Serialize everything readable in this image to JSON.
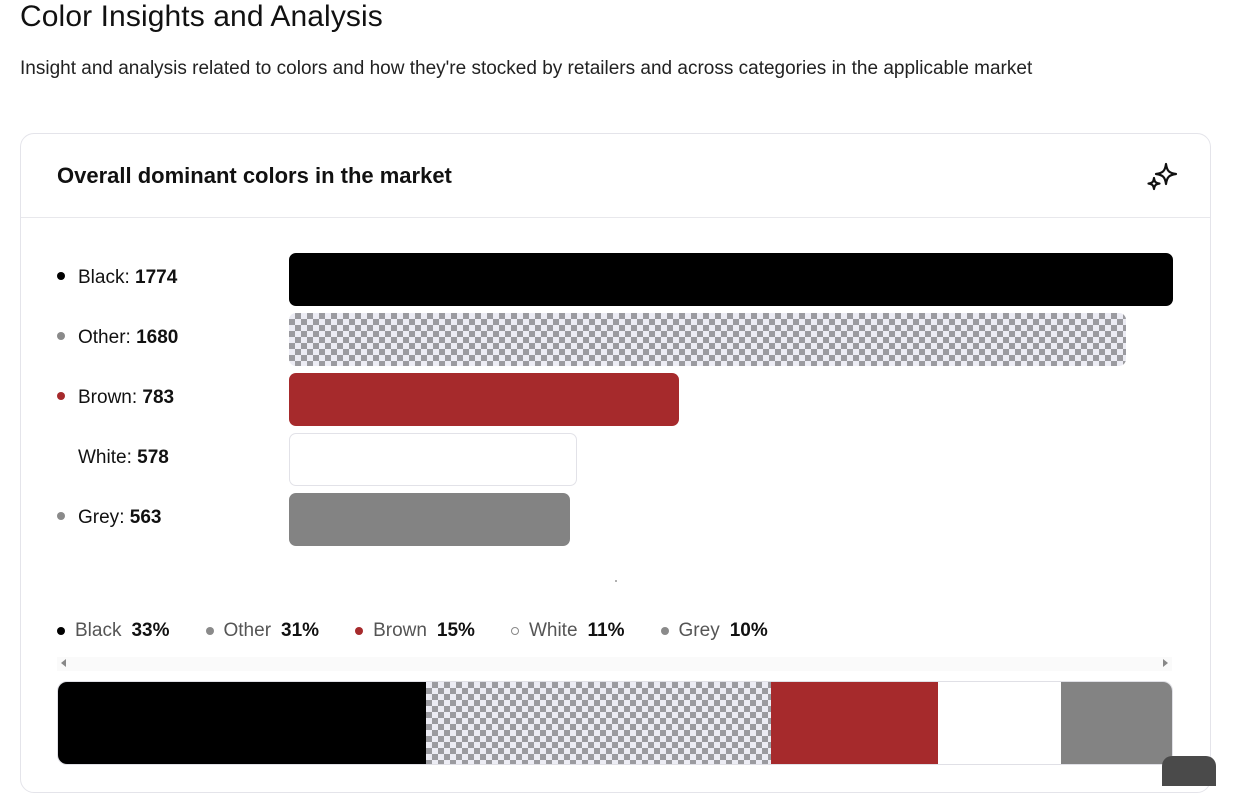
{
  "page": {
    "title": "Color Insights and Analysis",
    "subtitle": "Insight and analysis related to colors and how they're stocked by retailers and across categories in the applicable market"
  },
  "card": {
    "title": "Overall dominant colors in the market",
    "action_icon": "sparkle-icon"
  },
  "chart_data": {
    "type": "bar",
    "orientation": "horizontal",
    "categories": [
      "Black",
      "Other",
      "Brown",
      "White",
      "Grey"
    ],
    "values": [
      1774,
      1680,
      783,
      578,
      563
    ],
    "labels": [
      "1774",
      "1680",
      "783",
      "578",
      "563"
    ],
    "colors": [
      "#000000",
      "pattern",
      "#a62a2c",
      "#ffffff",
      "#838383"
    ],
    "dot_colors": [
      "#000000",
      "#8a8a8a",
      "#a62a2c",
      "#ffffff",
      "#8a8a8a"
    ],
    "xlim": [
      0,
      1774
    ],
    "title": "",
    "xlabel": "",
    "ylabel": ""
  },
  "legend": [
    {
      "name": "Black",
      "pct": "33%",
      "value": 33,
      "dot": "#000000"
    },
    {
      "name": "Other",
      "pct": "31%",
      "value": 31,
      "dot": "#8a8a8a"
    },
    {
      "name": "Brown",
      "pct": "15%",
      "value": 15,
      "dot": "#a62a2c"
    },
    {
      "name": "White",
      "pct": "11%",
      "value": 11,
      "dot": "#ffffff"
    },
    {
      "name": "Grey",
      "pct": "10%",
      "value": 10,
      "dot": "#8a8a8a"
    }
  ]
}
